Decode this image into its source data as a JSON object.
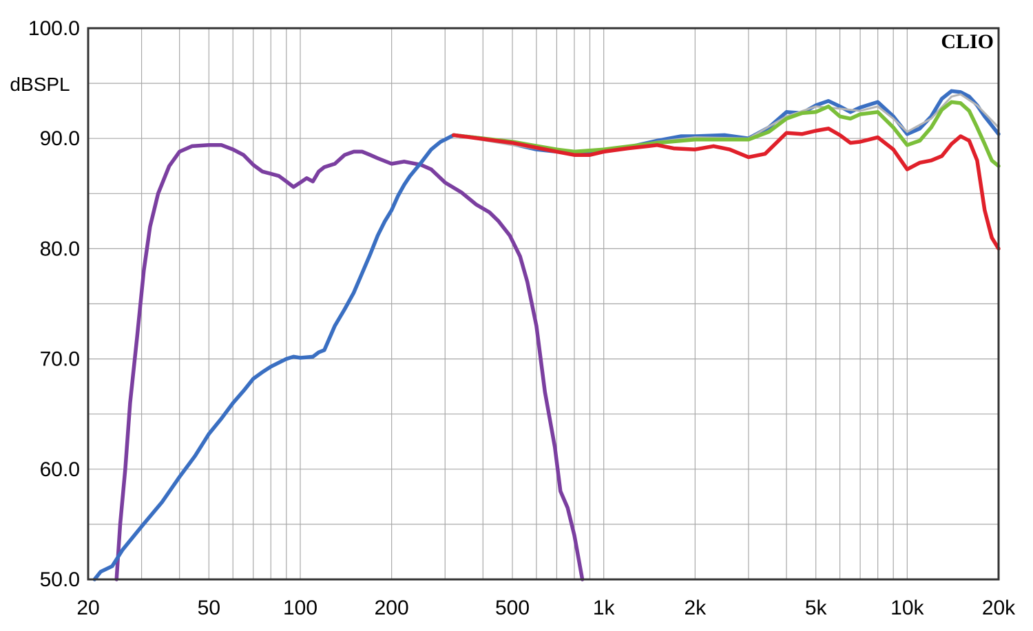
{
  "chart_data": {
    "type": "line",
    "title": "",
    "brand_label": "CLIO",
    "ylabel": "dBSPL",
    "xlabel": "",
    "xscale": "log",
    "xlim": [
      20,
      20000
    ],
    "ylim": [
      50,
      100
    ],
    "grid": true,
    "x_ticks": [
      {
        "value": 20,
        "label": "20"
      },
      {
        "value": 50,
        "label": "50"
      },
      {
        "value": 100,
        "label": "100"
      },
      {
        "value": 200,
        "label": "200"
      },
      {
        "value": 500,
        "label": "500"
      },
      {
        "value": 1000,
        "label": "1k"
      },
      {
        "value": 2000,
        "label": "2k"
      },
      {
        "value": 5000,
        "label": "5k"
      },
      {
        "value": 10000,
        "label": "10k"
      },
      {
        "value": 20000,
        "label": "20k"
      }
    ],
    "y_ticks": [
      {
        "value": 100,
        "label": "100.0"
      },
      {
        "value": 90,
        "label": "90.0"
      },
      {
        "value": 80,
        "label": "80.0"
      },
      {
        "value": 70,
        "label": "70.0"
      },
      {
        "value": 60,
        "label": "60.0"
      },
      {
        "value": 50,
        "label": "50.0"
      }
    ],
    "series": [
      {
        "color": "#7b3fa0",
        "points": [
          [
            24.8,
            50
          ],
          [
            25.5,
            55
          ],
          [
            26.5,
            60
          ],
          [
            27.5,
            66
          ],
          [
            29,
            72
          ],
          [
            30.5,
            78
          ],
          [
            32,
            82
          ],
          [
            34,
            85
          ],
          [
            37,
            87.5
          ],
          [
            40,
            88.8
          ],
          [
            44,
            89.3
          ],
          [
            50,
            89.4
          ],
          [
            55,
            89.4
          ],
          [
            60,
            89.0
          ],
          [
            65,
            88.5
          ],
          [
            70,
            87.6
          ],
          [
            75,
            87.0
          ],
          [
            80,
            86.8
          ],
          [
            85,
            86.6
          ],
          [
            90,
            86.1
          ],
          [
            95,
            85.6
          ],
          [
            100,
            86.0
          ],
          [
            105,
            86.4
          ],
          [
            110,
            86.1
          ],
          [
            115,
            87.0
          ],
          [
            120,
            87.4
          ],
          [
            130,
            87.7
          ],
          [
            140,
            88.5
          ],
          [
            150,
            88.8
          ],
          [
            160,
            88.8
          ],
          [
            170,
            88.5
          ],
          [
            180,
            88.2
          ],
          [
            200,
            87.7
          ],
          [
            220,
            87.9
          ],
          [
            250,
            87.6
          ],
          [
            270,
            87.2
          ],
          [
            300,
            86.0
          ],
          [
            340,
            85.1
          ],
          [
            380,
            84.0
          ],
          [
            420,
            83.3
          ],
          [
            450,
            82.5
          ],
          [
            490,
            81.2
          ],
          [
            530,
            79.3
          ],
          [
            560,
            77.0
          ],
          [
            600,
            73.0
          ],
          [
            640,
            67.0
          ],
          [
            690,
            62.0
          ],
          [
            720,
            58.0
          ],
          [
            760,
            56.5
          ],
          [
            800,
            54.0
          ],
          [
            850,
            50.0
          ]
        ]
      },
      {
        "color": "#3a6fc2",
        "points": [
          [
            21,
            50
          ],
          [
            22,
            50.7
          ],
          [
            24,
            51.2
          ],
          [
            26,
            52.7
          ],
          [
            30,
            54.8
          ],
          [
            35,
            57.0
          ],
          [
            40,
            59.3
          ],
          [
            45,
            61.2
          ],
          [
            50,
            63.2
          ],
          [
            55,
            64.6
          ],
          [
            60,
            66.0
          ],
          [
            65,
            67.1
          ],
          [
            70,
            68.2
          ],
          [
            75,
            68.8
          ],
          [
            80,
            69.3
          ],
          [
            90,
            70.0
          ],
          [
            95,
            70.2
          ],
          [
            100,
            70.1
          ],
          [
            110,
            70.2
          ],
          [
            115,
            70.6
          ],
          [
            120,
            70.8
          ],
          [
            130,
            73.0
          ],
          [
            140,
            74.5
          ],
          [
            150,
            76.0
          ],
          [
            160,
            77.8
          ],
          [
            170,
            79.5
          ],
          [
            180,
            81.2
          ],
          [
            190,
            82.5
          ],
          [
            200,
            83.5
          ],
          [
            210,
            84.8
          ],
          [
            220,
            85.8
          ],
          [
            230,
            86.6
          ],
          [
            250,
            87.8
          ],
          [
            270,
            89.0
          ],
          [
            290,
            89.7
          ],
          [
            300,
            89.9
          ],
          [
            320,
            90.3
          ]
        ]
      },
      {
        "color": "#3a6fc2",
        "points": [
          [
            320,
            90.3
          ],
          [
            400,
            90.0
          ],
          [
            500,
            89.5
          ],
          [
            600,
            89.0
          ],
          [
            700,
            88.8
          ],
          [
            800,
            88.6
          ],
          [
            1000,
            88.8
          ],
          [
            1200,
            89.2
          ],
          [
            1500,
            89.8
          ],
          [
            1800,
            90.2
          ],
          [
            2000,
            90.2
          ],
          [
            2500,
            90.3
          ],
          [
            3000,
            90.0
          ],
          [
            3500,
            91.0
          ],
          [
            4000,
            92.4
          ],
          [
            4500,
            92.3
          ],
          [
            5000,
            93.0
          ],
          [
            5500,
            93.4
          ],
          [
            6000,
            92.9
          ],
          [
            6500,
            92.4
          ],
          [
            7000,
            92.8
          ],
          [
            8000,
            93.3
          ],
          [
            9000,
            92.0
          ],
          [
            10000,
            90.4
          ],
          [
            11000,
            90.9
          ],
          [
            12000,
            92.0
          ],
          [
            13000,
            93.6
          ],
          [
            14000,
            94.3
          ],
          [
            15000,
            94.2
          ],
          [
            16000,
            93.8
          ],
          [
            17000,
            93.0
          ],
          [
            18000,
            92.0
          ],
          [
            20000,
            90.4
          ]
        ]
      },
      {
        "color": "#b5b5b5",
        "points": [
          [
            320,
            90.3
          ],
          [
            500,
            89.4
          ],
          [
            700,
            88.8
          ],
          [
            1000,
            88.9
          ],
          [
            1500,
            89.7
          ],
          [
            2000,
            90.1
          ],
          [
            3000,
            90.0
          ],
          [
            4000,
            92.0
          ],
          [
            5000,
            92.9
          ],
          [
            6000,
            92.7
          ],
          [
            7000,
            92.5
          ],
          [
            8000,
            92.9
          ],
          [
            9000,
            91.8
          ],
          [
            10000,
            90.6
          ],
          [
            12000,
            91.8
          ],
          [
            14000,
            93.8
          ],
          [
            15000,
            94.0
          ],
          [
            17000,
            93.0
          ],
          [
            20000,
            91.0
          ]
        ]
      },
      {
        "color": "#7bbf3a",
        "points": [
          [
            320,
            90.3
          ],
          [
            500,
            89.7
          ],
          [
            700,
            89.0
          ],
          [
            800,
            88.8
          ],
          [
            1000,
            89.0
          ],
          [
            1500,
            89.6
          ],
          [
            2000,
            89.9
          ],
          [
            3000,
            89.9
          ],
          [
            3500,
            90.6
          ],
          [
            4000,
            91.8
          ],
          [
            4500,
            92.3
          ],
          [
            5000,
            92.4
          ],
          [
            5500,
            92.9
          ],
          [
            6000,
            92.0
          ],
          [
            6500,
            91.8
          ],
          [
            7000,
            92.2
          ],
          [
            8000,
            92.4
          ],
          [
            9000,
            91.0
          ],
          [
            10000,
            89.4
          ],
          [
            11000,
            89.8
          ],
          [
            12000,
            91.0
          ],
          [
            13000,
            92.6
          ],
          [
            14000,
            93.3
          ],
          [
            15000,
            93.2
          ],
          [
            16000,
            92.5
          ],
          [
            17000,
            91.0
          ],
          [
            18000,
            89.5
          ],
          [
            19000,
            88.0
          ],
          [
            20000,
            87.5
          ]
        ]
      },
      {
        "color": "#e0202a",
        "points": [
          [
            320,
            90.3
          ],
          [
            500,
            89.6
          ],
          [
            700,
            88.8
          ],
          [
            800,
            88.5
          ],
          [
            900,
            88.5
          ],
          [
            1000,
            88.8
          ],
          [
            1200,
            89.1
          ],
          [
            1400,
            89.3
          ],
          [
            1500,
            89.4
          ],
          [
            1700,
            89.1
          ],
          [
            2000,
            89.0
          ],
          [
            2300,
            89.3
          ],
          [
            2600,
            89.0
          ],
          [
            3000,
            88.3
          ],
          [
            3400,
            88.6
          ],
          [
            4000,
            90.5
          ],
          [
            4500,
            90.4
          ],
          [
            5000,
            90.7
          ],
          [
            5500,
            90.9
          ],
          [
            6000,
            90.3
          ],
          [
            6500,
            89.6
          ],
          [
            7000,
            89.7
          ],
          [
            8000,
            90.1
          ],
          [
            9000,
            89.0
          ],
          [
            10000,
            87.2
          ],
          [
            11000,
            87.8
          ],
          [
            12000,
            88.0
          ],
          [
            13000,
            88.4
          ],
          [
            14000,
            89.5
          ],
          [
            15000,
            90.2
          ],
          [
            16000,
            89.8
          ],
          [
            17000,
            88.0
          ],
          [
            18000,
            83.5
          ],
          [
            19000,
            81.0
          ],
          [
            20000,
            80.0
          ]
        ]
      }
    ]
  }
}
